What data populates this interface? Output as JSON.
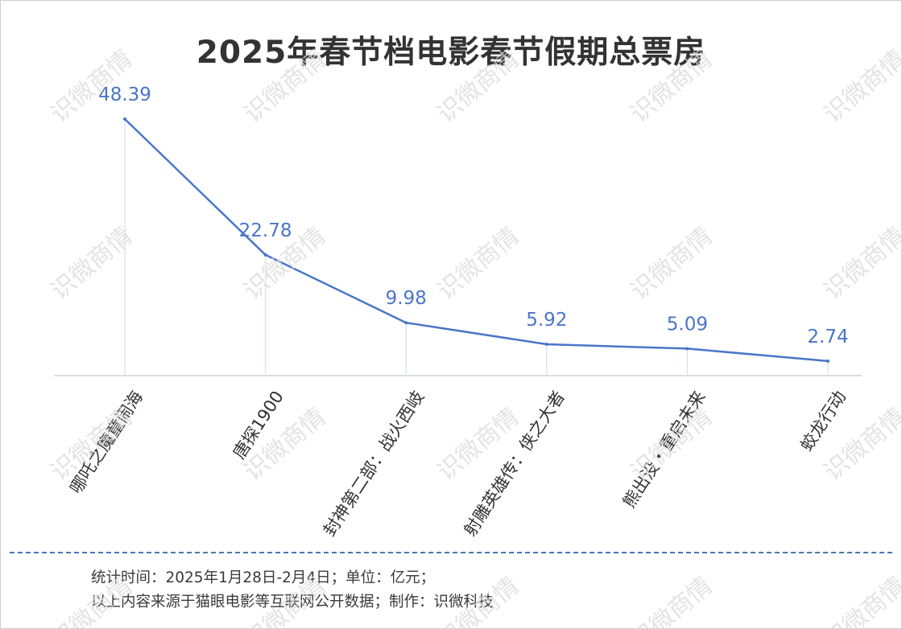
{
  "chart_data": {
    "type": "line",
    "title": "2025年春节档电影春节假期总票房",
    "categories": [
      "哪吒之魔童闹海",
      "唐探1900",
      "封神第二部：战火西岐",
      "射雕英雄传：侠之大者",
      "熊出没・重启未来",
      "蛟龙行动"
    ],
    "values": [
      48.39,
      22.78,
      9.98,
      5.92,
      5.09,
      2.74
    ],
    "data_labels": [
      "48.39",
      "22.78",
      "9.98",
      "5.92",
      "5.09",
      "2.74"
    ],
    "xlabel": "",
    "ylabel": "",
    "ylim": [
      0,
      48.39
    ],
    "grid": false,
    "legend": "none",
    "line_color": "#4a76c8",
    "label_color": "#4a76c8"
  },
  "notes": {
    "line1": "统计时间：2025年1月28日-2月4日；单位：亿元；",
    "line2": "以上内容来源于猫眼电影等互联网公开数据；制作：识微科技"
  },
  "watermark": {
    "text": "识微商情",
    "color": "#d9d9d9"
  },
  "colors": {
    "title": "#333333",
    "divider": "#4a76b8"
  }
}
